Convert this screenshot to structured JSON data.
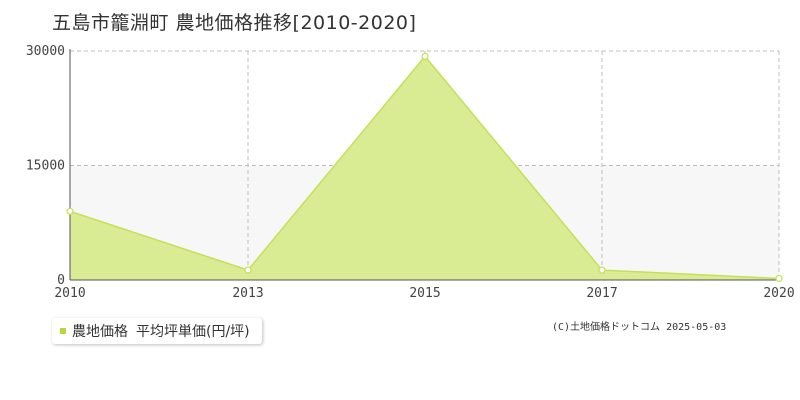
{
  "title": "五島市籠淵町 農地価格推移[2010-2020]",
  "legend": {
    "series": "農地価格",
    "unit_label": "平均坪単価(円/坪)"
  },
  "credit": "(C)土地価格ドットコム 2025-05-03",
  "colors": {
    "fill": "#d9ec93",
    "line": "#c4e05a",
    "swatch": "#b5d93a",
    "grid": "#bdbdbd",
    "band": "#f7f7f7"
  },
  "chart_data": {
    "type": "area",
    "x_labels": [
      "2010",
      "2013",
      "2015",
      "2017",
      "2020"
    ],
    "series": [
      {
        "name": "農地価格",
        "values": [
          9000,
          1300,
          29300,
          1300,
          200
        ]
      }
    ],
    "y_ticks": [
      "30000",
      "15000",
      "0"
    ],
    "ylim": [
      0,
      30000
    ],
    "grid": true,
    "legend_placement": "bottom-left"
  }
}
